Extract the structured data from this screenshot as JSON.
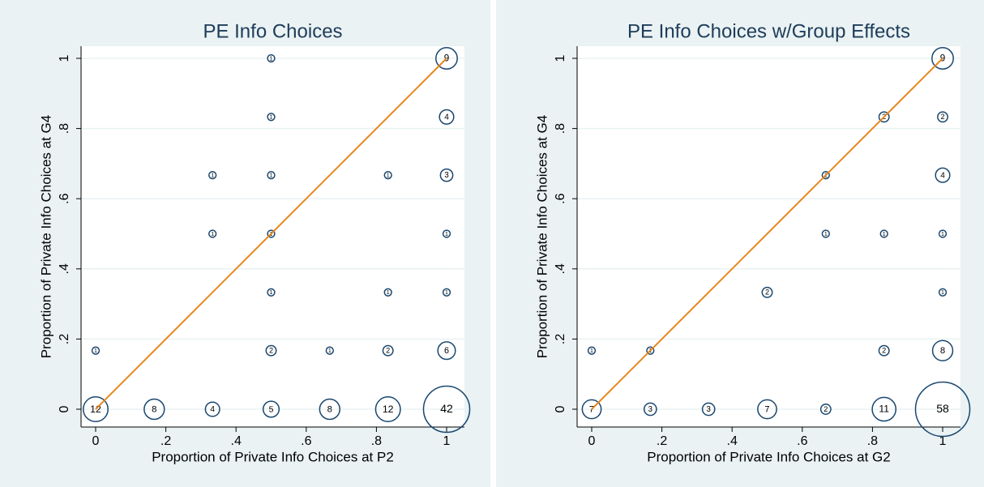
{
  "chart_data": [
    {
      "type": "scatter",
      "title": "PE Info Choices",
      "x_label": "Proportion of Private Info Choices at P2",
      "y_label": "Proportion of Private Info Choices at G4",
      "x": [
        0,
        0.167,
        0.333,
        0.5,
        0.667,
        0.833,
        1,
        0,
        0.5,
        0.667,
        0.833,
        1,
        0.5,
        0.833,
        1,
        0.333,
        0.5,
        1,
        0.333,
        0.5,
        0.833,
        1,
        0.5,
        1,
        0.5,
        1
      ],
      "y": [
        0,
        0,
        0,
        0,
        0,
        0,
        0,
        0.167,
        0.167,
        0.167,
        0.167,
        0.167,
        0.333,
        0.333,
        0.333,
        0.5,
        0.5,
        0.5,
        0.667,
        0.667,
        0.667,
        0.667,
        0.833,
        0.833,
        1,
        1
      ],
      "sizes": [
        12,
        8,
        4,
        5,
        8,
        12,
        42,
        1,
        2,
        1,
        2,
        6,
        1,
        1,
        1,
        1,
        1,
        1,
        1,
        1,
        1,
        3,
        1,
        4,
        1,
        9
      ],
      "marker_color": "#1a476f",
      "label_color": "#7d8b3a",
      "line": {
        "x": [
          0,
          1
        ],
        "y": [
          0,
          1
        ],
        "color": "#e8861a"
      },
      "xlim": [
        0,
        1
      ],
      "ylim": [
        0,
        1
      ],
      "xticks": [
        0,
        {
          "value": 0.2,
          "label": ".2"
        },
        {
          "value": 0.4,
          "label": ".4"
        },
        {
          "value": 0.6,
          "label": ".6"
        },
        {
          "value": 0.8,
          "label": ".8"
        },
        1
      ],
      "yticks": [
        0,
        {
          "value": 0.2,
          "label": ".2"
        },
        {
          "value": 0.4,
          "label": ".4"
        },
        {
          "value": 0.6,
          "label": ".6"
        },
        {
          "value": 0.8,
          "label": ".8"
        },
        1
      ],
      "grid": true
    },
    {
      "type": "scatter",
      "title": "PE Info Choices w/Group Effects",
      "x_label": "Proportion of Private Info Choices at G2",
      "y_label": "Proportion of Private Info Choices at G4",
      "x": [
        0,
        0.167,
        0.333,
        0.5,
        0.667,
        0.833,
        1,
        0,
        0.167,
        0.833,
        1,
        0.5,
        1,
        0.667,
        0.833,
        1,
        0.667,
        1,
        0.833,
        1,
        1
      ],
      "y": [
        0,
        0,
        0,
        0,
        0,
        0,
        0,
        0.167,
        0.167,
        0.167,
        0.167,
        0.333,
        0.333,
        0.5,
        0.5,
        0.5,
        0.667,
        0.667,
        0.833,
        0.833,
        1
      ],
      "sizes": [
        7,
        3,
        3,
        7,
        2,
        11,
        58,
        1,
        1,
        2,
        8,
        2,
        1,
        1,
        1,
        1,
        1,
        4,
        2,
        2,
        9
      ],
      "marker_color": "#1a476f",
      "label_color": "#7d8b3a",
      "line": {
        "x": [
          0,
          1
        ],
        "y": [
          0,
          1
        ],
        "color": "#e8861a"
      },
      "xlim": [
        0,
        1
      ],
      "ylim": [
        0,
        1
      ],
      "xticks": [
        0,
        {
          "value": 0.2,
          "label": ".2"
        },
        {
          "value": 0.4,
          "label": ".4"
        },
        {
          "value": 0.6,
          "label": ".6"
        },
        {
          "value": 0.8,
          "label": ".8"
        },
        1
      ],
      "yticks": [
        0,
        {
          "value": 0.2,
          "label": ".2"
        },
        {
          "value": 0.4,
          "label": ".4"
        },
        {
          "value": 0.6,
          "label": ".6"
        },
        {
          "value": 0.8,
          "label": ".8"
        },
        1
      ],
      "grid": true
    }
  ]
}
